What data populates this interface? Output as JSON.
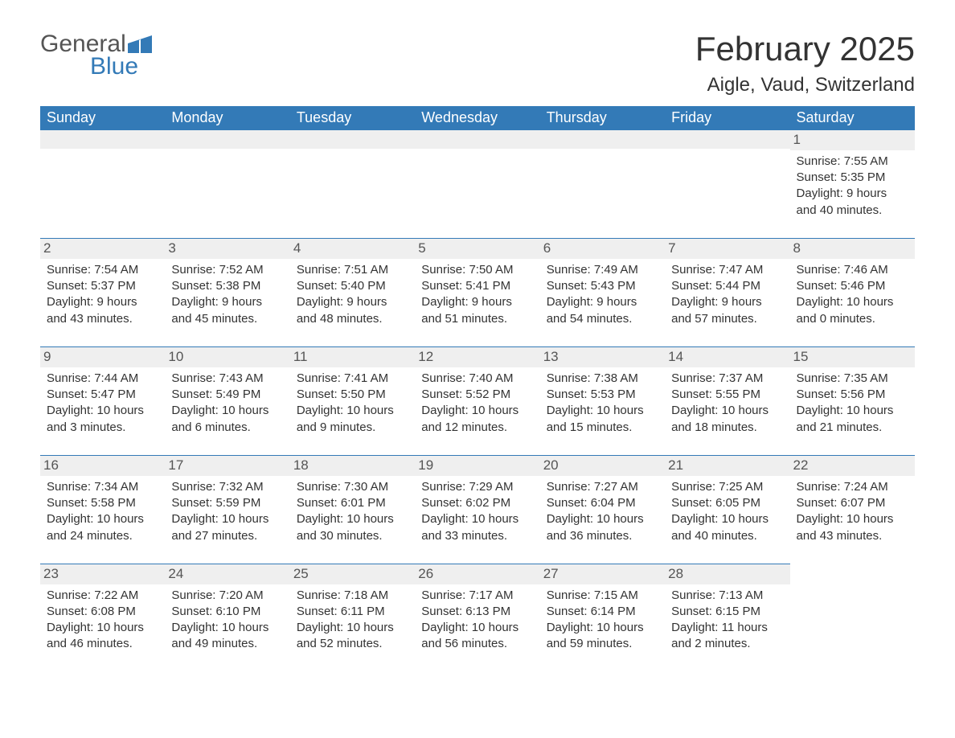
{
  "logo": {
    "word1": "General",
    "word2": "Blue",
    "color_gray": "#555555",
    "color_blue": "#337ab7"
  },
  "title": "February 2025",
  "location": "Aigle, Vaud, Switzerland",
  "colors": {
    "header_bg": "#337ab7",
    "header_text": "#ffffff",
    "day_head_bg": "#efefef",
    "day_head_border": "#337ab7",
    "body_text": "#333333",
    "page_bg": "#ffffff"
  },
  "weekdays": [
    "Sunday",
    "Monday",
    "Tuesday",
    "Wednesday",
    "Thursday",
    "Friday",
    "Saturday"
  ],
  "grid": [
    [
      null,
      null,
      null,
      null,
      null,
      null,
      {
        "n": "1",
        "sunrise": "Sunrise: 7:55 AM",
        "sunset": "Sunset: 5:35 PM",
        "daylight": "Daylight: 9 hours and 40 minutes."
      }
    ],
    [
      {
        "n": "2",
        "sunrise": "Sunrise: 7:54 AM",
        "sunset": "Sunset: 5:37 PM",
        "daylight": "Daylight: 9 hours and 43 minutes."
      },
      {
        "n": "3",
        "sunrise": "Sunrise: 7:52 AM",
        "sunset": "Sunset: 5:38 PM",
        "daylight": "Daylight: 9 hours and 45 minutes."
      },
      {
        "n": "4",
        "sunrise": "Sunrise: 7:51 AM",
        "sunset": "Sunset: 5:40 PM",
        "daylight": "Daylight: 9 hours and 48 minutes."
      },
      {
        "n": "5",
        "sunrise": "Sunrise: 7:50 AM",
        "sunset": "Sunset: 5:41 PM",
        "daylight": "Daylight: 9 hours and 51 minutes."
      },
      {
        "n": "6",
        "sunrise": "Sunrise: 7:49 AM",
        "sunset": "Sunset: 5:43 PM",
        "daylight": "Daylight: 9 hours and 54 minutes."
      },
      {
        "n": "7",
        "sunrise": "Sunrise: 7:47 AM",
        "sunset": "Sunset: 5:44 PM",
        "daylight": "Daylight: 9 hours and 57 minutes."
      },
      {
        "n": "8",
        "sunrise": "Sunrise: 7:46 AM",
        "sunset": "Sunset: 5:46 PM",
        "daylight": "Daylight: 10 hours and 0 minutes."
      }
    ],
    [
      {
        "n": "9",
        "sunrise": "Sunrise: 7:44 AM",
        "sunset": "Sunset: 5:47 PM",
        "daylight": "Daylight: 10 hours and 3 minutes."
      },
      {
        "n": "10",
        "sunrise": "Sunrise: 7:43 AM",
        "sunset": "Sunset: 5:49 PM",
        "daylight": "Daylight: 10 hours and 6 minutes."
      },
      {
        "n": "11",
        "sunrise": "Sunrise: 7:41 AM",
        "sunset": "Sunset: 5:50 PM",
        "daylight": "Daylight: 10 hours and 9 minutes."
      },
      {
        "n": "12",
        "sunrise": "Sunrise: 7:40 AM",
        "sunset": "Sunset: 5:52 PM",
        "daylight": "Daylight: 10 hours and 12 minutes."
      },
      {
        "n": "13",
        "sunrise": "Sunrise: 7:38 AM",
        "sunset": "Sunset: 5:53 PM",
        "daylight": "Daylight: 10 hours and 15 minutes."
      },
      {
        "n": "14",
        "sunrise": "Sunrise: 7:37 AM",
        "sunset": "Sunset: 5:55 PM",
        "daylight": "Daylight: 10 hours and 18 minutes."
      },
      {
        "n": "15",
        "sunrise": "Sunrise: 7:35 AM",
        "sunset": "Sunset: 5:56 PM",
        "daylight": "Daylight: 10 hours and 21 minutes."
      }
    ],
    [
      {
        "n": "16",
        "sunrise": "Sunrise: 7:34 AM",
        "sunset": "Sunset: 5:58 PM",
        "daylight": "Daylight: 10 hours and 24 minutes."
      },
      {
        "n": "17",
        "sunrise": "Sunrise: 7:32 AM",
        "sunset": "Sunset: 5:59 PM",
        "daylight": "Daylight: 10 hours and 27 minutes."
      },
      {
        "n": "18",
        "sunrise": "Sunrise: 7:30 AM",
        "sunset": "Sunset: 6:01 PM",
        "daylight": "Daylight: 10 hours and 30 minutes."
      },
      {
        "n": "19",
        "sunrise": "Sunrise: 7:29 AM",
        "sunset": "Sunset: 6:02 PM",
        "daylight": "Daylight: 10 hours and 33 minutes."
      },
      {
        "n": "20",
        "sunrise": "Sunrise: 7:27 AM",
        "sunset": "Sunset: 6:04 PM",
        "daylight": "Daylight: 10 hours and 36 minutes."
      },
      {
        "n": "21",
        "sunrise": "Sunrise: 7:25 AM",
        "sunset": "Sunset: 6:05 PM",
        "daylight": "Daylight: 10 hours and 40 minutes."
      },
      {
        "n": "22",
        "sunrise": "Sunrise: 7:24 AM",
        "sunset": "Sunset: 6:07 PM",
        "daylight": "Daylight: 10 hours and 43 minutes."
      }
    ],
    [
      {
        "n": "23",
        "sunrise": "Sunrise: 7:22 AM",
        "sunset": "Sunset: 6:08 PM",
        "daylight": "Daylight: 10 hours and 46 minutes."
      },
      {
        "n": "24",
        "sunrise": "Sunrise: 7:20 AM",
        "sunset": "Sunset: 6:10 PM",
        "daylight": "Daylight: 10 hours and 49 minutes."
      },
      {
        "n": "25",
        "sunrise": "Sunrise: 7:18 AM",
        "sunset": "Sunset: 6:11 PM",
        "daylight": "Daylight: 10 hours and 52 minutes."
      },
      {
        "n": "26",
        "sunrise": "Sunrise: 7:17 AM",
        "sunset": "Sunset: 6:13 PM",
        "daylight": "Daylight: 10 hours and 56 minutes."
      },
      {
        "n": "27",
        "sunrise": "Sunrise: 7:15 AM",
        "sunset": "Sunset: 6:14 PM",
        "daylight": "Daylight: 10 hours and 59 minutes."
      },
      {
        "n": "28",
        "sunrise": "Sunrise: 7:13 AM",
        "sunset": "Sunset: 6:15 PM",
        "daylight": "Daylight: 11 hours and 2 minutes."
      },
      null
    ]
  ]
}
